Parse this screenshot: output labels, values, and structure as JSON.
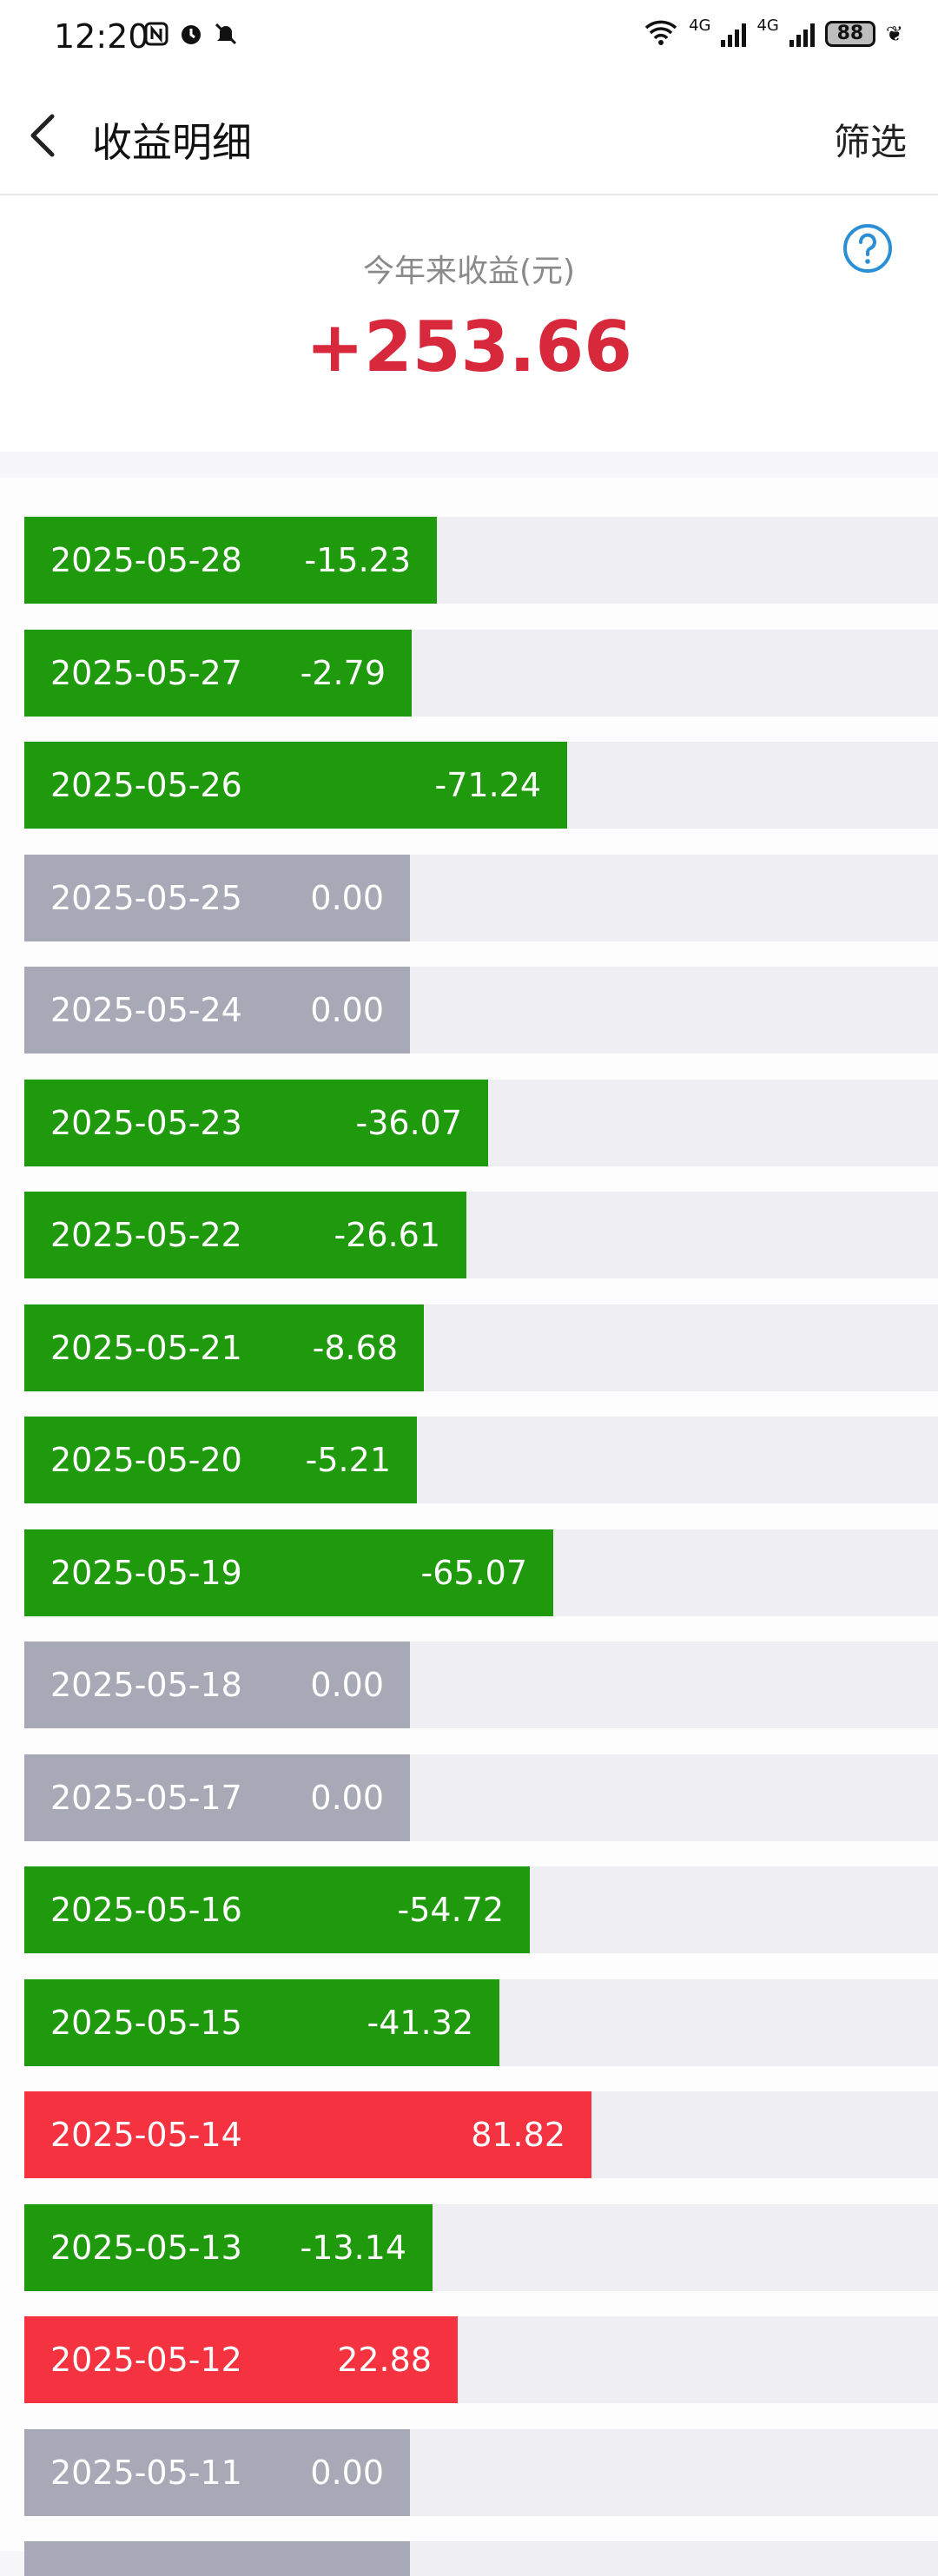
{
  "status_bar": {
    "time": "12:20",
    "battery": "88",
    "network_left": "4G",
    "network_right": "4G",
    "icons": [
      "nfc-icon",
      "alarm-icon",
      "mute-icon",
      "wifi-icon",
      "signal-icon",
      "signal-icon",
      "battery-icon",
      "leaf-icon"
    ]
  },
  "header": {
    "title": "收益明细",
    "filter_label": "筛选",
    "back_icon": "back-arrow-icon"
  },
  "summary": {
    "label": "今年来收益(元)",
    "value": "+253.66",
    "help_icon": "question-circle-icon"
  },
  "colors": {
    "loss": "#1f9a0c",
    "gain": "#f5323f",
    "zero": "#a7aab6",
    "accent_red": "#d8283c",
    "help_blue": "#2b8fd6"
  },
  "rows": [
    {
      "date": "2025-05-28",
      "amount": "-15.23",
      "status": "loss",
      "value": -15.23
    },
    {
      "date": "2025-05-27",
      "amount": "-2.79",
      "status": "loss",
      "value": -2.79
    },
    {
      "date": "2025-05-26",
      "amount": "-71.24",
      "status": "loss",
      "value": -71.24
    },
    {
      "date": "2025-05-25",
      "amount": "0.00",
      "status": "zero",
      "value": 0
    },
    {
      "date": "2025-05-24",
      "amount": "0.00",
      "status": "zero",
      "value": 0
    },
    {
      "date": "2025-05-23",
      "amount": "-36.07",
      "status": "loss",
      "value": -36.07
    },
    {
      "date": "2025-05-22",
      "amount": "-26.61",
      "status": "loss",
      "value": -26.61
    },
    {
      "date": "2025-05-21",
      "amount": "-8.68",
      "status": "loss",
      "value": -8.68
    },
    {
      "date": "2025-05-20",
      "amount": "-5.21",
      "status": "loss",
      "value": -5.21
    },
    {
      "date": "2025-05-19",
      "amount": "-65.07",
      "status": "loss",
      "value": -65.07
    },
    {
      "date": "2025-05-18",
      "amount": "0.00",
      "status": "zero",
      "value": 0
    },
    {
      "date": "2025-05-17",
      "amount": "0.00",
      "status": "zero",
      "value": 0
    },
    {
      "date": "2025-05-16",
      "amount": "-54.72",
      "status": "loss",
      "value": -54.72
    },
    {
      "date": "2025-05-15",
      "amount": "-41.32",
      "status": "loss",
      "value": -41.32
    },
    {
      "date": "2025-05-14",
      "amount": "81.82",
      "status": "gain",
      "value": 81.82
    },
    {
      "date": "2025-05-13",
      "amount": "-13.14",
      "status": "loss",
      "value": -13.14
    },
    {
      "date": "2025-05-12",
      "amount": "22.88",
      "status": "gain",
      "value": 22.88
    },
    {
      "date": "2025-05-11",
      "amount": "0.00",
      "status": "zero",
      "value": 0
    }
  ]
}
